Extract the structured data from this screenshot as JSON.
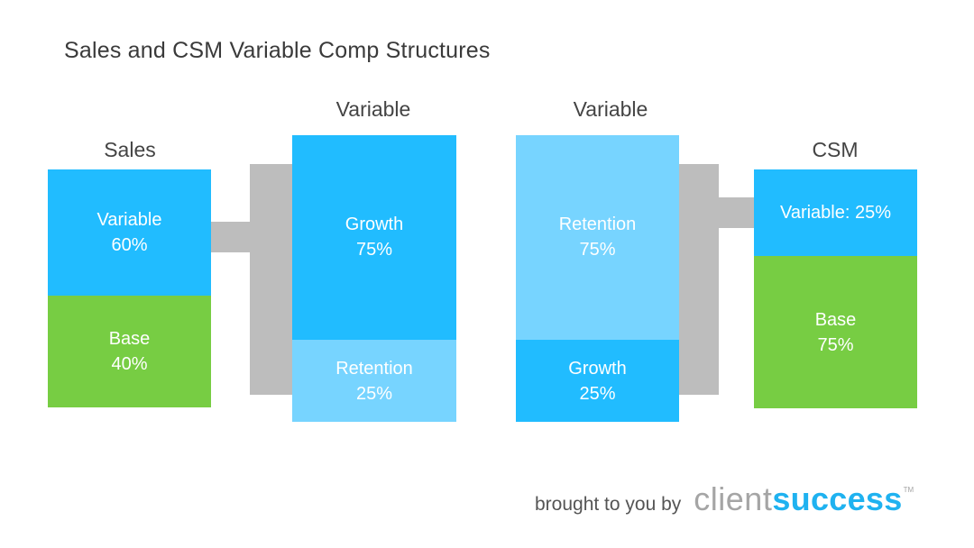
{
  "title": "Sales and CSM Variable Comp Structures",
  "sales": {
    "label": "Sales",
    "variable": {
      "name": "Variable",
      "pct": "60%"
    },
    "base": {
      "name": "Base",
      "pct": "40%"
    }
  },
  "sales_variable": {
    "label": "Variable",
    "growth": {
      "name": "Growth",
      "pct": "75%"
    },
    "retention": {
      "name": "Retention",
      "pct": "25%"
    }
  },
  "csm_variable": {
    "label": "Variable",
    "retention": {
      "name": "Retention",
      "pct": "75%"
    },
    "growth": {
      "name": "Growth",
      "pct": "25%"
    }
  },
  "csm": {
    "label": "CSM",
    "variable": {
      "text": "Variable: 25%"
    },
    "base": {
      "name": "Base",
      "pct": "75%"
    }
  },
  "footer": {
    "brought_by": "brought to you by",
    "brand_client": "client",
    "brand_success": "success",
    "trademark": "TM"
  },
  "colors": {
    "blue": "#21bcff",
    "light_blue": "#77d4ff",
    "green": "#77cd43",
    "connector_gray": "#bdbdbd",
    "brand_blue": "#1fb2f0"
  }
}
